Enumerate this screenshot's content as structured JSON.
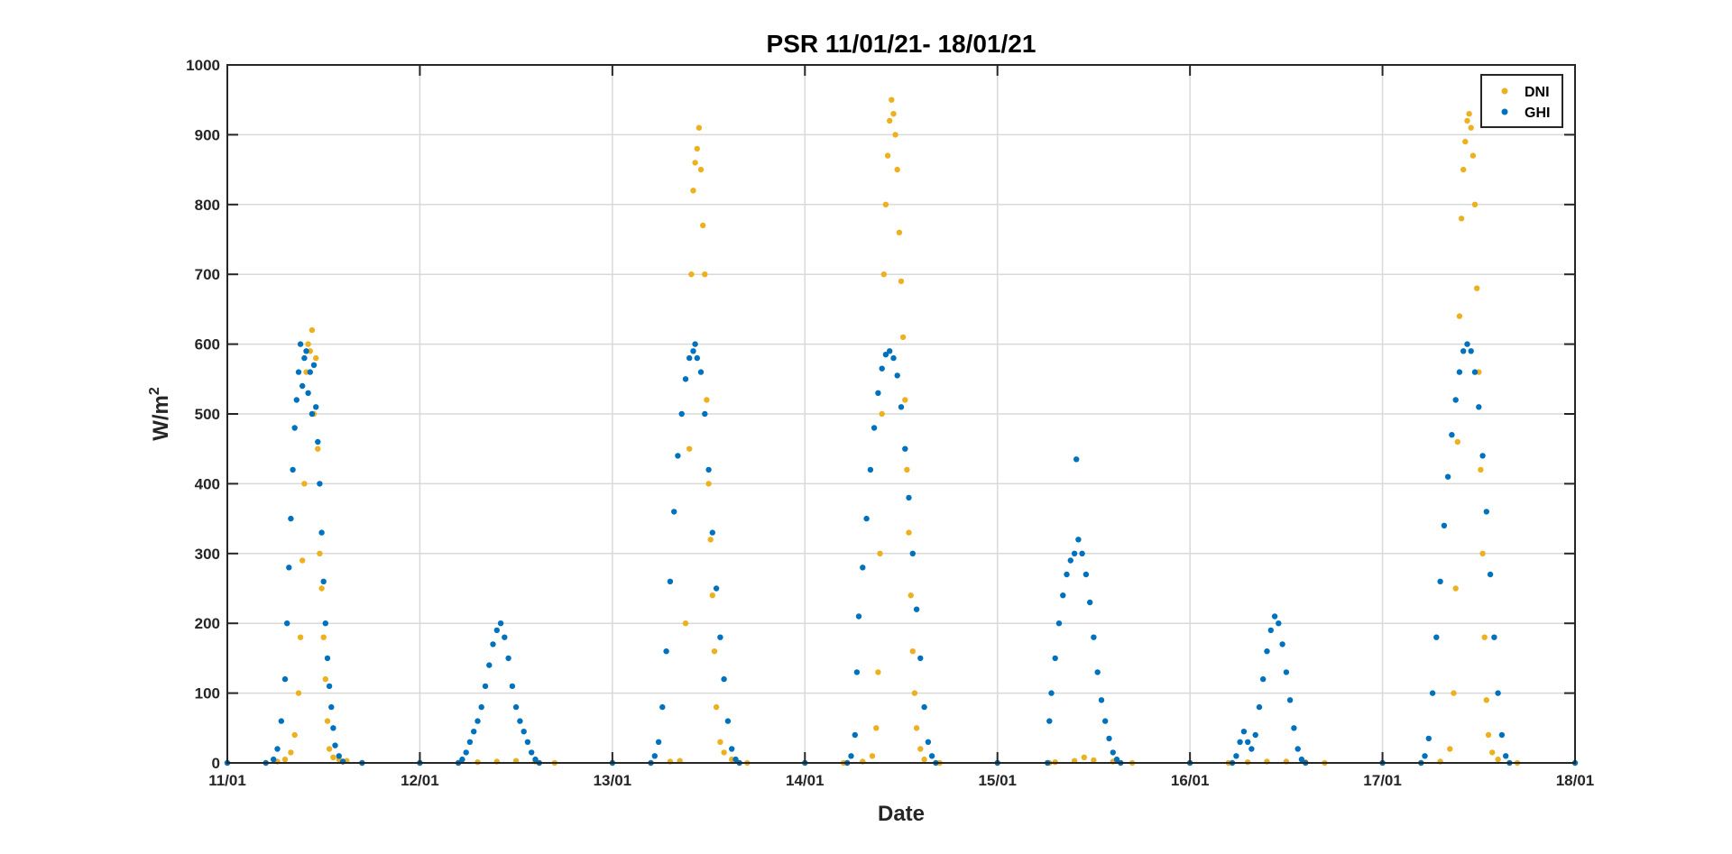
{
  "chart_data": {
    "type": "scatter",
    "title": "PSR 11/01/21- 18/01/21",
    "xlabel": "Date",
    "ylabel": "W/m",
    "ylabel_superscript": "2",
    "xlim": [
      "11/01",
      "18/01"
    ],
    "ylim": [
      0,
      1000
    ],
    "x_ticks": [
      "11/01",
      "12/01",
      "13/01",
      "14/01",
      "15/01",
      "16/01",
      "17/01",
      "18/01"
    ],
    "y_ticks": [
      0,
      100,
      200,
      300,
      400,
      500,
      600,
      700,
      800,
      900,
      1000
    ],
    "grid": true,
    "legend_position": "top-right",
    "x_unit": "days after 11/01 00:00",
    "series": [
      {
        "name": "DNI",
        "color": "#EDB120",
        "points": [
          [
            0.0,
            0
          ],
          [
            0.2,
            0
          ],
          [
            0.26,
            2
          ],
          [
            0.3,
            5
          ],
          [
            0.33,
            15
          ],
          [
            0.35,
            40
          ],
          [
            0.37,
            100
          ],
          [
            0.38,
            180
          ],
          [
            0.39,
            290
          ],
          [
            0.4,
            400
          ],
          [
            0.41,
            560
          ],
          [
            0.42,
            600
          ],
          [
            0.43,
            590
          ],
          [
            0.44,
            620
          ],
          [
            0.45,
            500
          ],
          [
            0.46,
            580
          ],
          [
            0.47,
            450
          ],
          [
            0.48,
            300
          ],
          [
            0.49,
            250
          ],
          [
            0.5,
            180
          ],
          [
            0.51,
            120
          ],
          [
            0.52,
            60
          ],
          [
            0.53,
            20
          ],
          [
            0.55,
            8
          ],
          [
            0.58,
            5
          ],
          [
            0.62,
            3
          ],
          [
            0.7,
            0
          ],
          [
            1.0,
            0
          ],
          [
            1.2,
            0
          ],
          [
            1.3,
            1
          ],
          [
            1.4,
            2
          ],
          [
            1.5,
            3
          ],
          [
            1.6,
            2
          ],
          [
            1.7,
            0
          ],
          [
            2.0,
            0
          ],
          [
            2.2,
            0
          ],
          [
            2.3,
            2
          ],
          [
            2.35,
            3
          ],
          [
            2.38,
            200
          ],
          [
            2.4,
            450
          ],
          [
            2.41,
            700
          ],
          [
            2.42,
            820
          ],
          [
            2.43,
            860
          ],
          [
            2.44,
            880
          ],
          [
            2.45,
            910
          ],
          [
            2.46,
            850
          ],
          [
            2.47,
            770
          ],
          [
            2.48,
            700
          ],
          [
            2.49,
            520
          ],
          [
            2.5,
            400
          ],
          [
            2.51,
            320
          ],
          [
            2.52,
            240
          ],
          [
            2.53,
            160
          ],
          [
            2.54,
            80
          ],
          [
            2.56,
            30
          ],
          [
            2.58,
            15
          ],
          [
            2.62,
            5
          ],
          [
            2.7,
            0
          ],
          [
            3.0,
            0
          ],
          [
            3.2,
            0
          ],
          [
            3.3,
            2
          ],
          [
            3.35,
            10
          ],
          [
            3.37,
            50
          ],
          [
            3.38,
            130
          ],
          [
            3.39,
            300
          ],
          [
            3.4,
            500
          ],
          [
            3.41,
            700
          ],
          [
            3.42,
            800
          ],
          [
            3.43,
            870
          ],
          [
            3.44,
            920
          ],
          [
            3.45,
            950
          ],
          [
            3.46,
            930
          ],
          [
            3.47,
            900
          ],
          [
            3.48,
            850
          ],
          [
            3.49,
            760
          ],
          [
            3.5,
            690
          ],
          [
            3.51,
            610
          ],
          [
            3.52,
            520
          ],
          [
            3.53,
            420
          ],
          [
            3.54,
            330
          ],
          [
            3.55,
            240
          ],
          [
            3.56,
            160
          ],
          [
            3.57,
            100
          ],
          [
            3.58,
            50
          ],
          [
            3.6,
            20
          ],
          [
            3.62,
            5
          ],
          [
            3.7,
            0
          ],
          [
            4.0,
            0
          ],
          [
            4.27,
            0
          ],
          [
            4.3,
            1
          ],
          [
            4.4,
            3
          ],
          [
            4.45,
            8
          ],
          [
            4.5,
            4
          ],
          [
            4.6,
            2
          ],
          [
            4.7,
            0
          ],
          [
            5.0,
            0
          ],
          [
            5.2,
            0
          ],
          [
            5.3,
            1
          ],
          [
            5.4,
            2
          ],
          [
            5.5,
            2
          ],
          [
            5.6,
            1
          ],
          [
            5.7,
            0
          ],
          [
            6.0,
            0
          ],
          [
            6.2,
            0
          ],
          [
            6.3,
            2
          ],
          [
            6.35,
            20
          ],
          [
            6.37,
            100
          ],
          [
            6.38,
            250
          ],
          [
            6.39,
            460
          ],
          [
            6.4,
            640
          ],
          [
            6.41,
            780
          ],
          [
            6.42,
            850
          ],
          [
            6.43,
            890
          ],
          [
            6.44,
            920
          ],
          [
            6.45,
            930
          ],
          [
            6.46,
            910
          ],
          [
            6.47,
            870
          ],
          [
            6.48,
            800
          ],
          [
            6.49,
            680
          ],
          [
            6.5,
            560
          ],
          [
            6.51,
            420
          ],
          [
            6.52,
            300
          ],
          [
            6.53,
            180
          ],
          [
            6.54,
            90
          ],
          [
            6.55,
            40
          ],
          [
            6.57,
            15
          ],
          [
            6.6,
            5
          ],
          [
            6.7,
            0
          ],
          [
            7.0,
            0
          ]
        ]
      },
      {
        "name": "GHI",
        "color": "#0072BD",
        "points": [
          [
            0.0,
            0
          ],
          [
            0.2,
            0
          ],
          [
            0.24,
            5
          ],
          [
            0.26,
            20
          ],
          [
            0.28,
            60
          ],
          [
            0.3,
            120
          ],
          [
            0.31,
            200
          ],
          [
            0.32,
            280
          ],
          [
            0.33,
            350
          ],
          [
            0.34,
            420
          ],
          [
            0.35,
            480
          ],
          [
            0.36,
            520
          ],
          [
            0.37,
            560
          ],
          [
            0.38,
            600
          ],
          [
            0.39,
            540
          ],
          [
            0.4,
            580
          ],
          [
            0.41,
            590
          ],
          [
            0.42,
            530
          ],
          [
            0.43,
            560
          ],
          [
            0.44,
            500
          ],
          [
            0.45,
            570
          ],
          [
            0.46,
            510
          ],
          [
            0.47,
            460
          ],
          [
            0.48,
            400
          ],
          [
            0.49,
            330
          ],
          [
            0.5,
            260
          ],
          [
            0.51,
            200
          ],
          [
            0.52,
            150
          ],
          [
            0.53,
            110
          ],
          [
            0.54,
            80
          ],
          [
            0.55,
            50
          ],
          [
            0.56,
            25
          ],
          [
            0.58,
            10
          ],
          [
            0.6,
            2
          ],
          [
            0.7,
            0
          ],
          [
            1.0,
            0
          ],
          [
            1.2,
            0
          ],
          [
            1.22,
            5
          ],
          [
            1.24,
            15
          ],
          [
            1.26,
            30
          ],
          [
            1.28,
            45
          ],
          [
            1.3,
            60
          ],
          [
            1.32,
            80
          ],
          [
            1.34,
            110
          ],
          [
            1.36,
            140
          ],
          [
            1.38,
            170
          ],
          [
            1.4,
            190
          ],
          [
            1.42,
            200
          ],
          [
            1.44,
            180
          ],
          [
            1.46,
            150
          ],
          [
            1.48,
            110
          ],
          [
            1.5,
            80
          ],
          [
            1.52,
            60
          ],
          [
            1.54,
            45
          ],
          [
            1.56,
            30
          ],
          [
            1.58,
            15
          ],
          [
            1.6,
            5
          ],
          [
            1.62,
            0
          ],
          [
            2.0,
            0
          ],
          [
            2.2,
            0
          ],
          [
            2.22,
            10
          ],
          [
            2.24,
            30
          ],
          [
            2.26,
            80
          ],
          [
            2.28,
            160
          ],
          [
            2.3,
            260
          ],
          [
            2.32,
            360
          ],
          [
            2.34,
            440
          ],
          [
            2.36,
            500
          ],
          [
            2.38,
            550
          ],
          [
            2.4,
            580
          ],
          [
            2.42,
            590
          ],
          [
            2.43,
            600
          ],
          [
            2.44,
            580
          ],
          [
            2.46,
            560
          ],
          [
            2.48,
            500
          ],
          [
            2.5,
            420
          ],
          [
            2.52,
            330
          ],
          [
            2.54,
            250
          ],
          [
            2.56,
            180
          ],
          [
            2.58,
            120
          ],
          [
            2.6,
            60
          ],
          [
            2.62,
            20
          ],
          [
            2.64,
            5
          ],
          [
            2.66,
            0
          ],
          [
            3.0,
            0
          ],
          [
            3.22,
            0
          ],
          [
            3.24,
            10
          ],
          [
            3.26,
            40
          ],
          [
            3.27,
            130
          ],
          [
            3.28,
            210
          ],
          [
            3.3,
            280
          ],
          [
            3.32,
            350
          ],
          [
            3.34,
            420
          ],
          [
            3.36,
            480
          ],
          [
            3.38,
            530
          ],
          [
            3.4,
            565
          ],
          [
            3.42,
            585
          ],
          [
            3.44,
            590
          ],
          [
            3.46,
            580
          ],
          [
            3.48,
            555
          ],
          [
            3.5,
            510
          ],
          [
            3.52,
            450
          ],
          [
            3.54,
            380
          ],
          [
            3.56,
            300
          ],
          [
            3.58,
            220
          ],
          [
            3.6,
            150
          ],
          [
            3.62,
            80
          ],
          [
            3.64,
            30
          ],
          [
            3.66,
            10
          ],
          [
            3.68,
            0
          ],
          [
            4.0,
            0
          ],
          [
            4.26,
            0
          ],
          [
            4.27,
            60
          ],
          [
            4.28,
            100
          ],
          [
            4.3,
            150
          ],
          [
            4.32,
            200
          ],
          [
            4.34,
            240
          ],
          [
            4.36,
            270
          ],
          [
            4.38,
            290
          ],
          [
            4.4,
            300
          ],
          [
            4.41,
            435
          ],
          [
            4.42,
            320
          ],
          [
            4.44,
            300
          ],
          [
            4.46,
            270
          ],
          [
            4.48,
            230
          ],
          [
            4.5,
            180
          ],
          [
            4.52,
            130
          ],
          [
            4.54,
            90
          ],
          [
            4.56,
            60
          ],
          [
            4.58,
            35
          ],
          [
            4.6,
            15
          ],
          [
            4.62,
            5
          ],
          [
            4.64,
            0
          ],
          [
            5.0,
            0
          ],
          [
            5.22,
            0
          ],
          [
            5.24,
            10
          ],
          [
            5.26,
            30
          ],
          [
            5.28,
            45
          ],
          [
            5.3,
            30
          ],
          [
            5.32,
            20
          ],
          [
            5.34,
            40
          ],
          [
            5.36,
            80
          ],
          [
            5.38,
            120
          ],
          [
            5.4,
            160
          ],
          [
            5.42,
            190
          ],
          [
            5.44,
            210
          ],
          [
            5.46,
            200
          ],
          [
            5.48,
            170
          ],
          [
            5.5,
            130
          ],
          [
            5.52,
            90
          ],
          [
            5.54,
            50
          ],
          [
            5.56,
            20
          ],
          [
            5.58,
            5
          ],
          [
            5.6,
            0
          ],
          [
            6.0,
            0
          ],
          [
            6.2,
            0
          ],
          [
            6.22,
            10
          ],
          [
            6.24,
            35
          ],
          [
            6.26,
            100
          ],
          [
            6.28,
            180
          ],
          [
            6.3,
            260
          ],
          [
            6.32,
            340
          ],
          [
            6.34,
            410
          ],
          [
            6.36,
            470
          ],
          [
            6.38,
            520
          ],
          [
            6.4,
            560
          ],
          [
            6.42,
            590
          ],
          [
            6.44,
            600
          ],
          [
            6.46,
            590
          ],
          [
            6.48,
            560
          ],
          [
            6.5,
            510
          ],
          [
            6.52,
            440
          ],
          [
            6.54,
            360
          ],
          [
            6.56,
            270
          ],
          [
            6.58,
            180
          ],
          [
            6.6,
            100
          ],
          [
            6.62,
            40
          ],
          [
            6.64,
            10
          ],
          [
            6.66,
            0
          ],
          [
            7.0,
            0
          ]
        ]
      }
    ]
  }
}
